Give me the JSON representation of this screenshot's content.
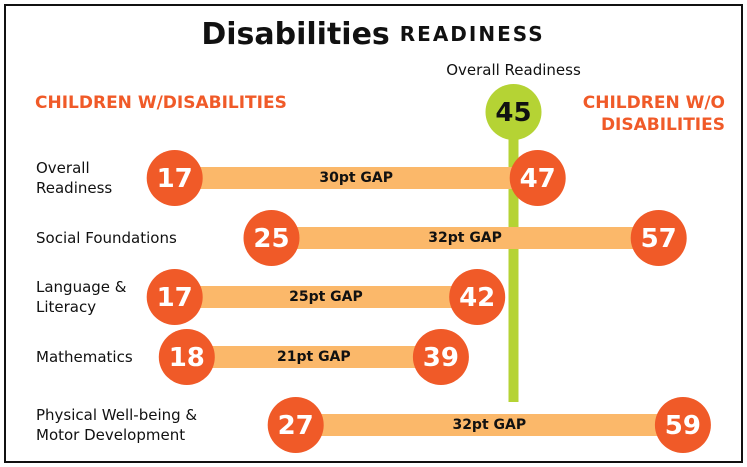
{
  "chart_data": {
    "type": "dumbbell",
    "title": "Disabilities",
    "subtitle": "READINESS",
    "categories": [
      "Overall Readiness",
      "Social Foundations",
      "Language & Literacy",
      "Mathematics",
      "Physical Well-being & Motor Development"
    ],
    "series": [
      {
        "name": "CHILDREN W/DISABILITIES",
        "color": "#f05a28",
        "values": [
          17,
          25,
          17,
          18,
          27
        ]
      },
      {
        "name": "CHILDREN W/O DISABILITIES",
        "color": "#f05a28",
        "values": [
          47,
          57,
          42,
          39,
          59
        ]
      }
    ],
    "gap_labels": [
      "30pt GAP",
      "32pt GAP",
      "25pt GAP",
      "21pt GAP",
      "32pt GAP"
    ],
    "bar_color": "#fbb86a",
    "reference": {
      "label": "Overall Readiness",
      "value": 45,
      "color": "#b5d334"
    }
  }
}
